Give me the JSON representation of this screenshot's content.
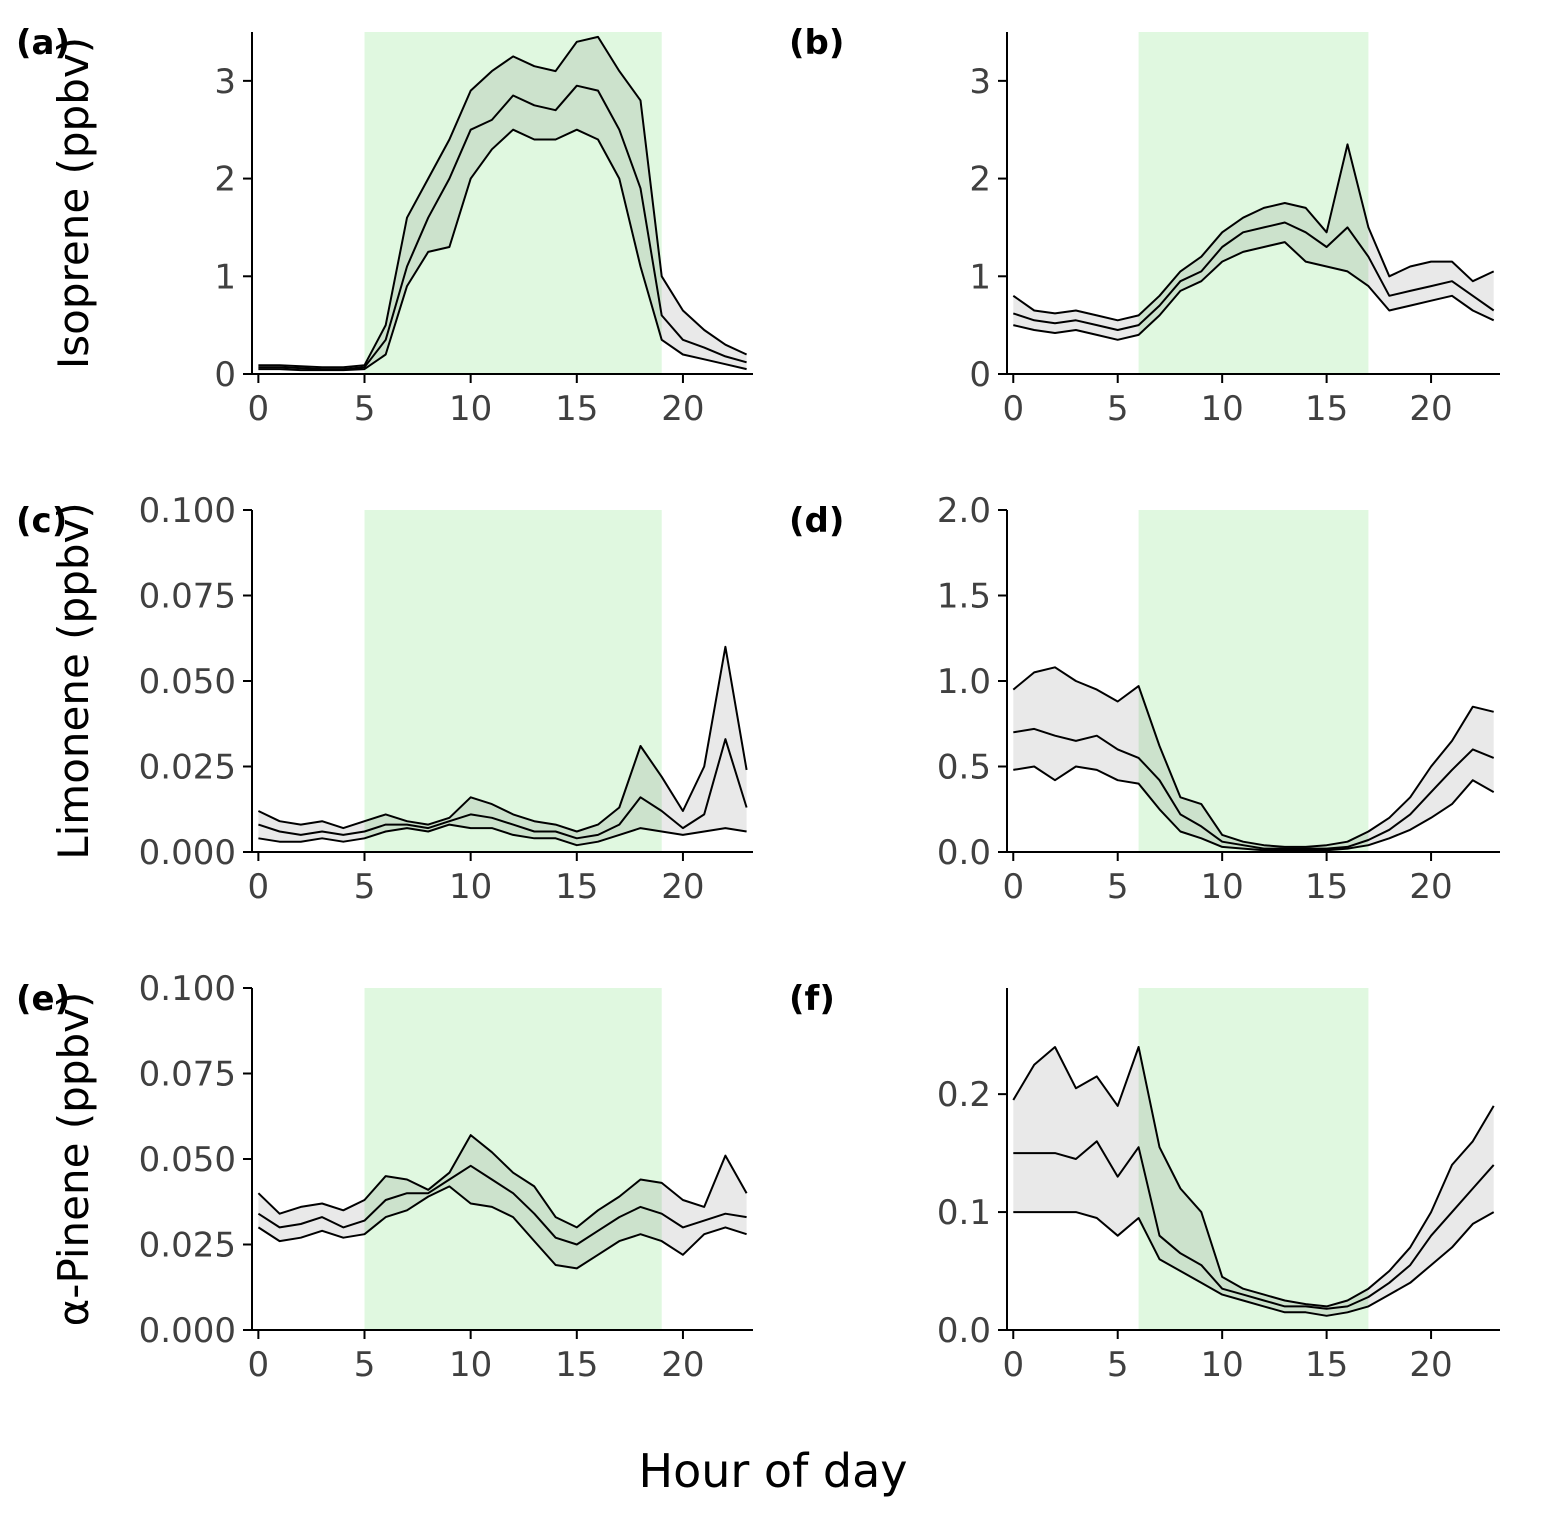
{
  "figure": {
    "xlabel": "Hour of day",
    "background_color": "#FFFFFF",
    "shade_color": "#E0F8E0",
    "ribbon_color": "rgba(0,0,0,0.085)",
    "line_color": "#000000",
    "axis_color": "#000000",
    "tick_label_color": "#404040"
  },
  "chart_data": [
    {
      "type": "line",
      "id": "a",
      "panel_label": "(a)",
      "ylabel": "Isoprene (ppbv)",
      "x": [
        0,
        1,
        2,
        3,
        4,
        5,
        6,
        7,
        8,
        9,
        10,
        11,
        12,
        13,
        14,
        15,
        16,
        17,
        18,
        19,
        20,
        21,
        22,
        23
      ],
      "series": [
        {
          "name": "lower",
          "values": [
            0.05,
            0.05,
            0.04,
            0.04,
            0.04,
            0.05,
            0.2,
            0.9,
            1.25,
            1.3,
            2.0,
            2.3,
            2.5,
            2.4,
            2.4,
            2.5,
            2.4,
            2.0,
            1.1,
            0.35,
            0.2,
            0.15,
            0.1,
            0.05
          ]
        },
        {
          "name": "median",
          "values": [
            0.07,
            0.07,
            0.06,
            0.05,
            0.05,
            0.07,
            0.35,
            1.1,
            1.6,
            2.0,
            2.5,
            2.6,
            2.85,
            2.75,
            2.7,
            2.95,
            2.9,
            2.5,
            1.9,
            0.6,
            0.35,
            0.27,
            0.18,
            0.12
          ]
        },
        {
          "name": "upper",
          "values": [
            0.09,
            0.09,
            0.08,
            0.07,
            0.07,
            0.09,
            0.5,
            1.6,
            2.0,
            2.4,
            2.9,
            3.1,
            3.25,
            3.15,
            3.1,
            3.4,
            3.45,
            3.1,
            2.8,
            1.0,
            0.65,
            0.45,
            0.3,
            0.2
          ]
        }
      ],
      "ribbon": [
        "lower",
        "upper"
      ],
      "shaded_x_range": [
        5,
        19
      ],
      "xlim": [
        -0.3,
        23.3
      ],
      "ylim": [
        0,
        3.5
      ],
      "xticks": [
        0,
        5,
        10,
        15,
        20
      ],
      "xtick_labels": [
        "0",
        "5",
        "10",
        "15",
        "20"
      ],
      "yticks": [
        0,
        1,
        2,
        3
      ],
      "ytick_labels": [
        "0",
        "1",
        "2",
        "3"
      ]
    },
    {
      "type": "line",
      "id": "b",
      "panel_label": "(b)",
      "ylabel": null,
      "x": [
        0,
        1,
        2,
        3,
        4,
        5,
        6,
        7,
        8,
        9,
        10,
        11,
        12,
        13,
        14,
        15,
        16,
        17,
        18,
        19,
        20,
        21,
        22,
        23
      ],
      "series": [
        {
          "name": "lower",
          "values": [
            0.5,
            0.45,
            0.42,
            0.45,
            0.4,
            0.35,
            0.4,
            0.6,
            0.85,
            0.95,
            1.15,
            1.25,
            1.3,
            1.35,
            1.15,
            1.1,
            1.05,
            0.9,
            0.65,
            0.7,
            0.75,
            0.8,
            0.65,
            0.55
          ]
        },
        {
          "name": "median",
          "values": [
            0.62,
            0.55,
            0.52,
            0.55,
            0.5,
            0.45,
            0.5,
            0.7,
            0.95,
            1.05,
            1.3,
            1.45,
            1.5,
            1.55,
            1.45,
            1.3,
            1.5,
            1.2,
            0.8,
            0.85,
            0.9,
            0.95,
            0.8,
            0.65
          ]
        },
        {
          "name": "upper",
          "values": [
            0.8,
            0.65,
            0.62,
            0.65,
            0.6,
            0.55,
            0.6,
            0.8,
            1.05,
            1.2,
            1.45,
            1.6,
            1.7,
            1.75,
            1.7,
            1.45,
            2.35,
            1.5,
            1.0,
            1.1,
            1.15,
            1.15,
            0.95,
            1.05
          ]
        }
      ],
      "ribbon": [
        "lower",
        "upper"
      ],
      "shaded_x_range": [
        6,
        17
      ],
      "xlim": [
        -0.3,
        23.3
      ],
      "ylim": [
        0,
        3.5
      ],
      "xticks": [
        0,
        5,
        10,
        15,
        20
      ],
      "xtick_labels": [
        "0",
        "5",
        "10",
        "15",
        "20"
      ],
      "yticks": [
        0,
        1,
        2,
        3
      ],
      "ytick_labels": [
        "0",
        "1",
        "2",
        "3"
      ]
    },
    {
      "type": "line",
      "id": "c",
      "panel_label": "(c)",
      "ylabel": "Limonene (ppbv)",
      "x": [
        0,
        1,
        2,
        3,
        4,
        5,
        6,
        7,
        8,
        9,
        10,
        11,
        12,
        13,
        14,
        15,
        16,
        17,
        18,
        19,
        20,
        21,
        22,
        23
      ],
      "series": [
        {
          "name": "lower",
          "values": [
            0.004,
            0.003,
            0.003,
            0.004,
            0.003,
            0.004,
            0.006,
            0.007,
            0.006,
            0.008,
            0.007,
            0.007,
            0.005,
            0.004,
            0.004,
            0.002,
            0.003,
            0.005,
            0.007,
            0.006,
            0.005,
            0.006,
            0.007,
            0.006
          ]
        },
        {
          "name": "median",
          "values": [
            0.008,
            0.006,
            0.005,
            0.006,
            0.005,
            0.006,
            0.008,
            0.008,
            0.007,
            0.009,
            0.011,
            0.01,
            0.008,
            0.006,
            0.006,
            0.004,
            0.005,
            0.008,
            0.016,
            0.012,
            0.007,
            0.011,
            0.033,
            0.013
          ]
        },
        {
          "name": "upper",
          "values": [
            0.012,
            0.009,
            0.008,
            0.009,
            0.007,
            0.009,
            0.011,
            0.009,
            0.008,
            0.01,
            0.016,
            0.014,
            0.011,
            0.009,
            0.008,
            0.006,
            0.008,
            0.013,
            0.031,
            0.022,
            0.012,
            0.025,
            0.06,
            0.024
          ]
        }
      ],
      "ribbon": [
        "lower",
        "upper"
      ],
      "shaded_x_range": [
        5,
        19
      ],
      "xlim": [
        -0.3,
        23.3
      ],
      "ylim": [
        0,
        0.1
      ],
      "xticks": [
        0,
        5,
        10,
        15,
        20
      ],
      "xtick_labels": [
        "0",
        "5",
        "10",
        "15",
        "20"
      ],
      "yticks": [
        0,
        0.025,
        0.05,
        0.075,
        0.1
      ],
      "ytick_labels": [
        "0.000",
        "0.025",
        "0.050",
        "0.075",
        "0.100"
      ]
    },
    {
      "type": "line",
      "id": "d",
      "panel_label": "(d)",
      "ylabel": null,
      "x": [
        0,
        1,
        2,
        3,
        4,
        5,
        6,
        7,
        8,
        9,
        10,
        11,
        12,
        13,
        14,
        15,
        16,
        17,
        18,
        19,
        20,
        21,
        22,
        23
      ],
      "series": [
        {
          "name": "lower",
          "values": [
            0.48,
            0.5,
            0.42,
            0.5,
            0.48,
            0.42,
            0.4,
            0.25,
            0.12,
            0.08,
            0.03,
            0.02,
            0.01,
            0.01,
            0.01,
            0.01,
            0.02,
            0.04,
            0.08,
            0.13,
            0.2,
            0.28,
            0.42,
            0.35
          ]
        },
        {
          "name": "median",
          "values": [
            0.7,
            0.72,
            0.68,
            0.65,
            0.68,
            0.6,
            0.55,
            0.42,
            0.22,
            0.15,
            0.06,
            0.04,
            0.02,
            0.02,
            0.02,
            0.02,
            0.03,
            0.07,
            0.13,
            0.22,
            0.35,
            0.48,
            0.6,
            0.55
          ]
        },
        {
          "name": "upper",
          "values": [
            0.95,
            1.05,
            1.08,
            1.0,
            0.95,
            0.88,
            0.97,
            0.62,
            0.32,
            0.28,
            0.1,
            0.06,
            0.04,
            0.03,
            0.03,
            0.04,
            0.06,
            0.12,
            0.2,
            0.32,
            0.5,
            0.65,
            0.85,
            0.82
          ]
        }
      ],
      "ribbon": [
        "lower",
        "upper"
      ],
      "shaded_x_range": [
        6,
        17
      ],
      "xlim": [
        -0.3,
        23.3
      ],
      "ylim": [
        0,
        2.0
      ],
      "xticks": [
        0,
        5,
        10,
        15,
        20
      ],
      "xtick_labels": [
        "0",
        "5",
        "10",
        "15",
        "20"
      ],
      "yticks": [
        0,
        0.5,
        1.0,
        1.5,
        2.0
      ],
      "ytick_labels": [
        "0.0",
        "0.5",
        "1.0",
        "1.5",
        "2.0"
      ]
    },
    {
      "type": "line",
      "id": "e",
      "panel_label": "(e)",
      "ylabel": "α-Pinene (ppbv)",
      "x": [
        0,
        1,
        2,
        3,
        4,
        5,
        6,
        7,
        8,
        9,
        10,
        11,
        12,
        13,
        14,
        15,
        16,
        17,
        18,
        19,
        20,
        21,
        22,
        23
      ],
      "series": [
        {
          "name": "lower",
          "values": [
            0.03,
            0.026,
            0.027,
            0.029,
            0.027,
            0.028,
            0.033,
            0.035,
            0.039,
            0.042,
            0.037,
            0.036,
            0.033,
            0.026,
            0.019,
            0.018,
            0.022,
            0.026,
            0.028,
            0.026,
            0.022,
            0.028,
            0.03,
            0.028
          ]
        },
        {
          "name": "median",
          "values": [
            0.034,
            0.03,
            0.031,
            0.033,
            0.03,
            0.032,
            0.038,
            0.04,
            0.04,
            0.044,
            0.048,
            0.044,
            0.04,
            0.034,
            0.027,
            0.025,
            0.029,
            0.033,
            0.036,
            0.034,
            0.03,
            0.032,
            0.034,
            0.033
          ]
        },
        {
          "name": "upper",
          "values": [
            0.04,
            0.034,
            0.036,
            0.037,
            0.035,
            0.038,
            0.045,
            0.044,
            0.041,
            0.046,
            0.057,
            0.052,
            0.046,
            0.042,
            0.033,
            0.03,
            0.035,
            0.039,
            0.044,
            0.043,
            0.038,
            0.036,
            0.051,
            0.04
          ]
        }
      ],
      "ribbon": [
        "lower",
        "upper"
      ],
      "shaded_x_range": [
        5,
        19
      ],
      "xlim": [
        -0.3,
        23.3
      ],
      "ylim": [
        0,
        0.1
      ],
      "xticks": [
        0,
        5,
        10,
        15,
        20
      ],
      "xtick_labels": [
        "0",
        "5",
        "10",
        "15",
        "20"
      ],
      "yticks": [
        0,
        0.025,
        0.05,
        0.075,
        0.1
      ],
      "ytick_labels": [
        "0.000",
        "0.025",
        "0.050",
        "0.075",
        "0.100"
      ]
    },
    {
      "type": "line",
      "id": "f",
      "panel_label": "(f)",
      "ylabel": null,
      "x": [
        0,
        1,
        2,
        3,
        4,
        5,
        6,
        7,
        8,
        9,
        10,
        11,
        12,
        13,
        14,
        15,
        16,
        17,
        18,
        19,
        20,
        21,
        22,
        23
      ],
      "series": [
        {
          "name": "lower",
          "values": [
            0.1,
            0.1,
            0.1,
            0.1,
            0.095,
            0.08,
            0.095,
            0.06,
            0.05,
            0.04,
            0.03,
            0.025,
            0.02,
            0.015,
            0.015,
            0.012,
            0.015,
            0.02,
            0.03,
            0.04,
            0.055,
            0.07,
            0.09,
            0.1
          ]
        },
        {
          "name": "median",
          "values": [
            0.15,
            0.15,
            0.15,
            0.145,
            0.16,
            0.13,
            0.155,
            0.08,
            0.065,
            0.055,
            0.035,
            0.03,
            0.025,
            0.02,
            0.02,
            0.018,
            0.02,
            0.028,
            0.04,
            0.055,
            0.08,
            0.1,
            0.12,
            0.14
          ]
        },
        {
          "name": "upper",
          "values": [
            0.195,
            0.225,
            0.24,
            0.205,
            0.215,
            0.19,
            0.24,
            0.155,
            0.12,
            0.1,
            0.045,
            0.035,
            0.03,
            0.025,
            0.022,
            0.02,
            0.025,
            0.035,
            0.05,
            0.07,
            0.1,
            0.14,
            0.16,
            0.19
          ]
        }
      ],
      "ribbon": [
        "lower",
        "upper"
      ],
      "shaded_x_range": [
        6,
        17
      ],
      "xlim": [
        -0.3,
        23.3
      ],
      "ylim": [
        0,
        0.29
      ],
      "xticks": [
        0,
        5,
        10,
        15,
        20
      ],
      "xtick_labels": [
        "0",
        "5",
        "10",
        "15",
        "20"
      ],
      "yticks": [
        0,
        0.1,
        0.2
      ],
      "ytick_labels": [
        "0.0",
        "0.1",
        "0.2"
      ]
    }
  ]
}
